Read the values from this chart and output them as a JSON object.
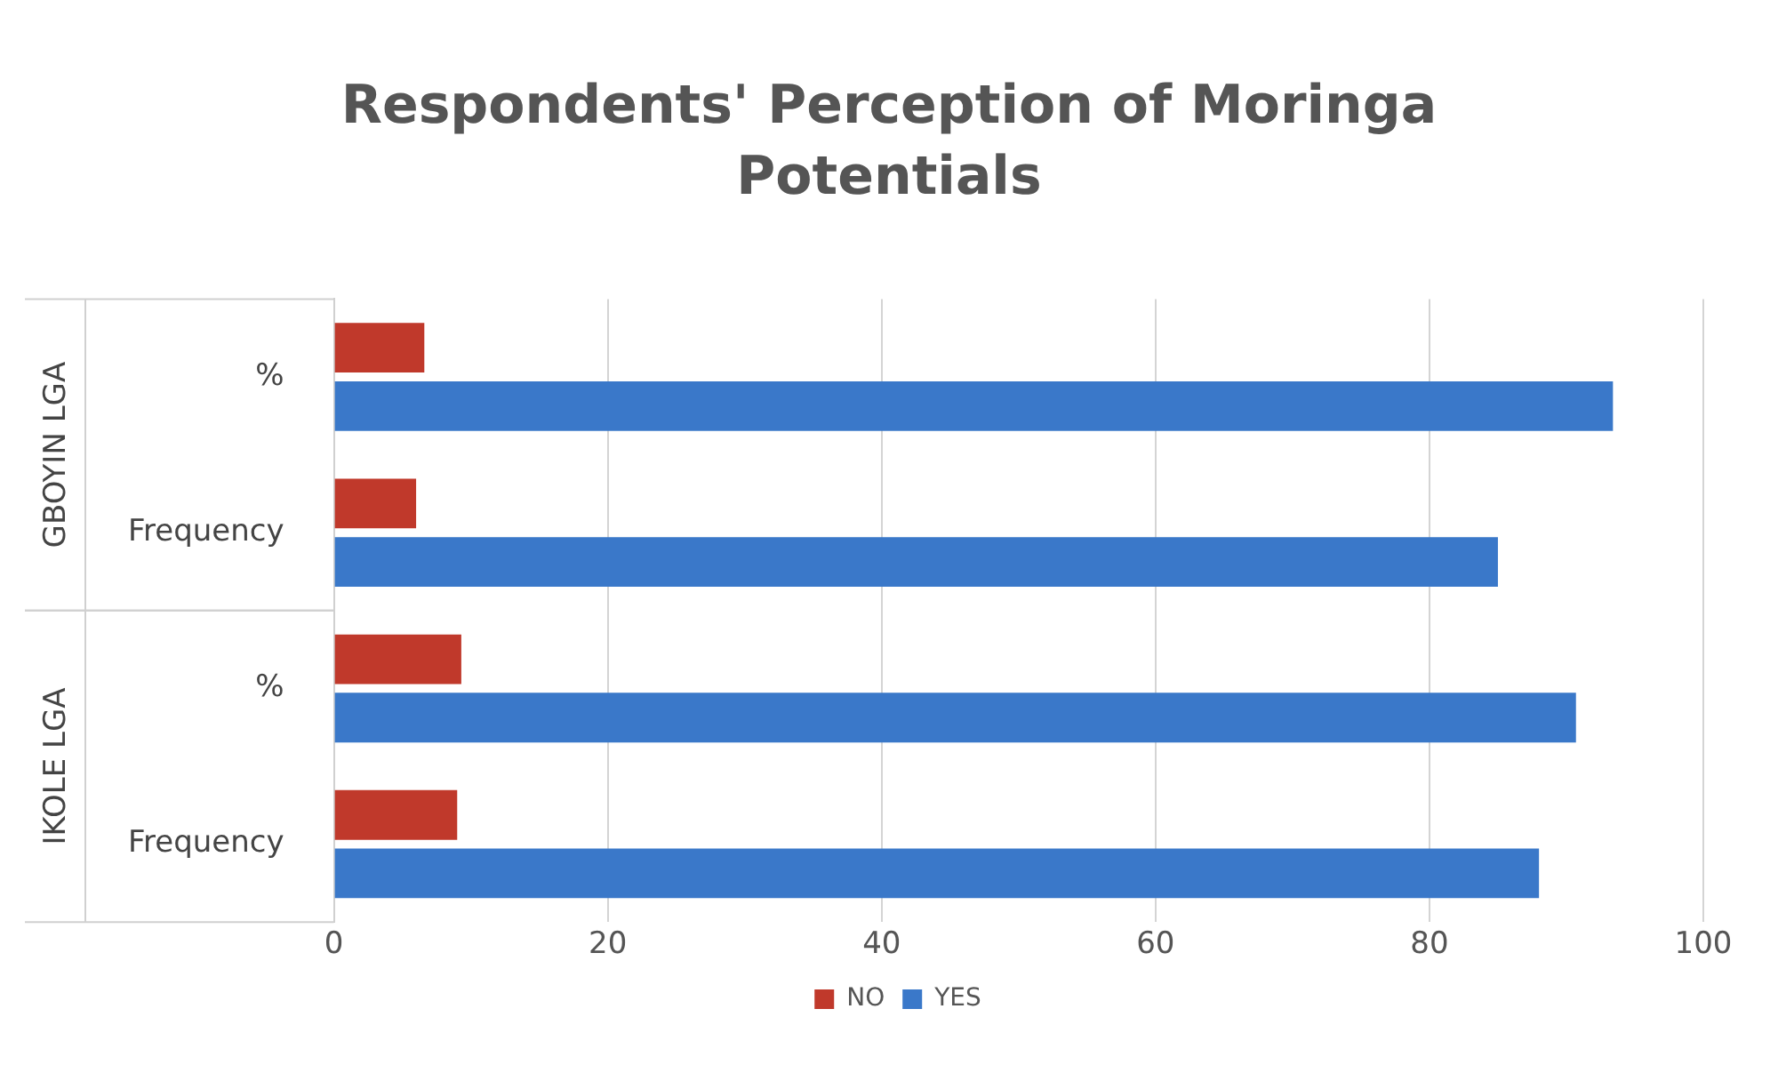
{
  "chart_data": {
    "type": "bar",
    "orientation": "horizontal",
    "title": "Respondents' Perception of Moringa Potentials",
    "categories": [
      "%",
      "Frequency",
      "%",
      "Frequency"
    ],
    "series": [
      {
        "name": "NO",
        "color": "#c0392b",
        "values": [
          6.6,
          6,
          9.3,
          9
        ]
      },
      {
        "name": "YES",
        "color": "#3a78c9",
        "values": [
          93.4,
          85,
          90.7,
          88
        ]
      }
    ],
    "annotations": [
      "GBOYIN LGA",
      "IKOLE LGA"
    ],
    "xlim": [
      0,
      100
    ],
    "xticks": [
      0,
      20,
      40,
      60,
      80,
      100
    ],
    "grid": "x",
    "legend": "bottom"
  }
}
